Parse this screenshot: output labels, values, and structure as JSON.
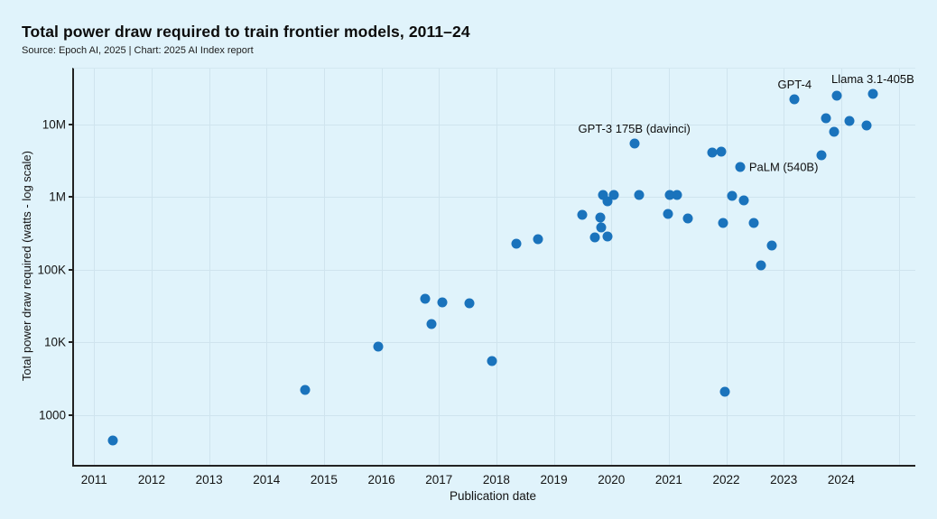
{
  "header": {
    "title": "Total power draw required to train frontier models, 2011–24",
    "subtitle": "Source: Epoch AI, 2025 | Chart: 2025 AI Index report"
  },
  "chart_data": {
    "type": "scatter",
    "title": "Total power draw required to train frontier models, 2011–24",
    "source": "Source: Epoch AI, 2025 | Chart: 2025 AI Index report",
    "xlabel": "Publication date",
    "ylabel": "Total power draw required (watts - log scale)",
    "accent_color": "#1a73bc",
    "grid": true,
    "x_axis": {
      "min": 2010.65,
      "max": 2025.29,
      "ticks": [
        {
          "year": 2011,
          "label": "2011"
        },
        {
          "year": 2012,
          "label": "2012"
        },
        {
          "year": 2013,
          "label": "2013"
        },
        {
          "year": 2014,
          "label": "2014"
        },
        {
          "year": 2015,
          "label": "2015"
        },
        {
          "year": 2016,
          "label": "2016"
        },
        {
          "year": 2017,
          "label": "2017"
        },
        {
          "year": 2018,
          "label": "2018"
        },
        {
          "year": 2019,
          "label": "2019"
        },
        {
          "year": 2020,
          "label": "2020"
        },
        {
          "year": 2021,
          "label": "2021"
        },
        {
          "year": 2022,
          "label": "2022"
        },
        {
          "year": 2023,
          "label": "2023"
        },
        {
          "year": 2024,
          "label": "2024"
        },
        {
          "year": 2025,
          "label": ""
        }
      ]
    },
    "y_axis": {
      "scale": "log",
      "min_log": 2.313,
      "max_log": 7.766,
      "ticks": [
        {
          "value": 1000,
          "label": "1000"
        },
        {
          "value": 10000,
          "label": "10K"
        },
        {
          "value": 100000,
          "label": "100K"
        },
        {
          "value": 1000000,
          "label": "1M"
        },
        {
          "value": 10000000,
          "label": "10M"
        }
      ]
    },
    "points": [
      {
        "year": 2011.33,
        "watts": 450
      },
      {
        "year": 2014.67,
        "watts": 2200
      },
      {
        "year": 2015.95,
        "watts": 8700
      },
      {
        "year": 2016.76,
        "watts": 40000
      },
      {
        "year": 2016.87,
        "watts": 18000
      },
      {
        "year": 2017.06,
        "watts": 35000
      },
      {
        "year": 2017.53,
        "watts": 34000
      },
      {
        "year": 2017.92,
        "watts": 5500
      },
      {
        "year": 2018.34,
        "watts": 230000
      },
      {
        "year": 2018.73,
        "watts": 260000
      },
      {
        "year": 2019.49,
        "watts": 570000
      },
      {
        "year": 2019.71,
        "watts": 280000
      },
      {
        "year": 2019.81,
        "watts": 520000
      },
      {
        "year": 2019.83,
        "watts": 385000
      },
      {
        "year": 2019.85,
        "watts": 1050000
      },
      {
        "year": 2019.93,
        "watts": 860000
      },
      {
        "year": 2019.94,
        "watts": 285000
      },
      {
        "year": 2020.05,
        "watts": 1050000
      },
      {
        "year": 2020.4,
        "watts": 5500000,
        "label": "GPT-3 175B (davinci)",
        "label_pos": "above"
      },
      {
        "year": 2020.49,
        "watts": 1050000
      },
      {
        "year": 2020.99,
        "watts": 580000
      },
      {
        "year": 2021.02,
        "watts": 1070000
      },
      {
        "year": 2021.15,
        "watts": 1050000
      },
      {
        "year": 2021.33,
        "watts": 510000
      },
      {
        "year": 2021.75,
        "watts": 4050000
      },
      {
        "year": 2021.92,
        "watts": 4150000
      },
      {
        "year": 2021.94,
        "watts": 440000
      },
      {
        "year": 2021.97,
        "watts": 2100
      },
      {
        "year": 2022.1,
        "watts": 1030000
      },
      {
        "year": 2022.24,
        "watts": 2600000,
        "label": "PaLM (540B)",
        "label_pos": "right"
      },
      {
        "year": 2022.31,
        "watts": 890000
      },
      {
        "year": 2022.48,
        "watts": 440000
      },
      {
        "year": 2022.6,
        "watts": 113000
      },
      {
        "year": 2022.79,
        "watts": 216000
      },
      {
        "year": 2023.19,
        "watts": 22000000,
        "label": "GPT-4",
        "label_pos": "above"
      },
      {
        "year": 2023.66,
        "watts": 3700000
      },
      {
        "year": 2023.73,
        "watts": 12000000
      },
      {
        "year": 2023.87,
        "watts": 7800000
      },
      {
        "year": 2023.92,
        "watts": 25000000
      },
      {
        "year": 2024.14,
        "watts": 11000000
      },
      {
        "year": 2024.44,
        "watts": 9500000
      },
      {
        "year": 2024.55,
        "watts": 26000000,
        "label": "Llama 3.1-405B",
        "label_pos": "above"
      }
    ]
  }
}
